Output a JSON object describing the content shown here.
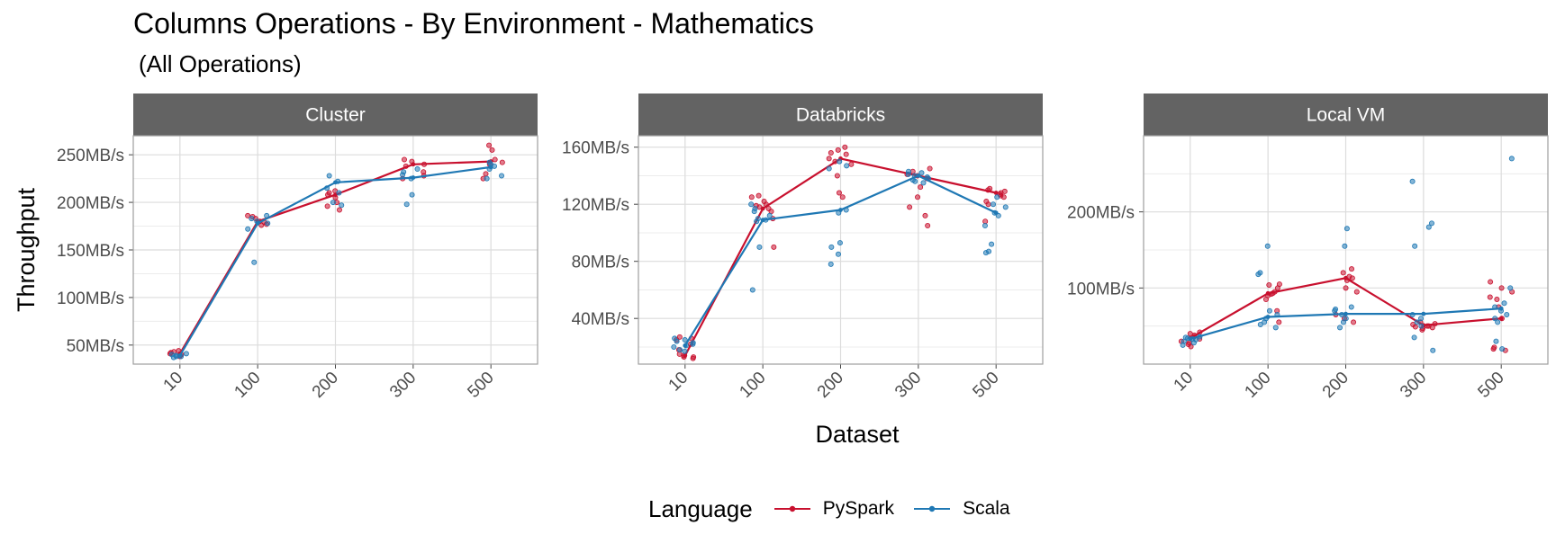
{
  "title": "Columns Operations - By Environment - Mathematics",
  "subtitle": "(All Operations)",
  "legend": {
    "title": "Language",
    "items": [
      {
        "label": "PySpark",
        "color": "#c8102e"
      },
      {
        "label": "Scala",
        "color": "#1f78b4"
      }
    ]
  },
  "chart_data": {
    "type": "line",
    "xlabel": "Dataset",
    "ylabel": "Throughput",
    "categories": [
      "10",
      "100",
      "200",
      "300",
      "500"
    ],
    "grid": true,
    "legend_position": "bottom",
    "panels": [
      {
        "name": "Cluster",
        "ylim": [
          30,
          270
        ],
        "y_ticks": [
          50,
          100,
          150,
          200,
          250
        ],
        "y_tick_labels": [
          "50MB/s",
          "100MB/s",
          "150MB/s",
          "200MB/s",
          "250MB/s"
        ],
        "series": [
          {
            "name": "PySpark",
            "values": [
              41,
              180,
              208,
              240,
              243
            ],
            "points": [
              [
                38,
                40,
                42,
                43,
                44,
                39,
                41
              ],
              [
                177,
                180,
                183,
                185,
                179,
                176,
                186
              ],
              [
                205,
                210,
                192,
                196,
                200,
                212,
                208
              ],
              [
                225,
                232,
                240,
                245,
                243,
                228,
                238
              ],
              [
                260,
                255,
                245,
                230,
                225,
                242,
                240
              ]
            ]
          },
          {
            "name": "Scala",
            "values": [
              39,
              178,
              221,
              226,
              237
            ],
            "points": [
              [
                37,
                38,
                39,
                40,
                41,
                38
              ],
              [
                137,
                172,
                178,
                183,
                186,
                180
              ],
              [
                228,
                222,
                200,
                197,
                210,
                215
              ],
              [
                198,
                208,
                232,
                229,
                225,
                235
              ],
              [
                238,
                228,
                225,
                242,
                240,
                235
              ]
            ]
          }
        ]
      },
      {
        "name": "Databricks",
        "ylim": [
          8,
          168
        ],
        "y_ticks": [
          40,
          80,
          120,
          160
        ],
        "y_tick_labels": [
          "40MB/s",
          "80MB/s",
          "120MB/s",
          "160MB/s"
        ],
        "series": [
          {
            "name": "PySpark",
            "values": [
              14,
              117,
              152,
              140,
              128
            ],
            "points": [
              [
                12,
                13,
                14,
                15,
                18,
                22,
                25,
                27,
                26,
                13
              ],
              [
                90,
                110,
                115,
                117,
                120,
                122,
                125,
                126,
                118,
                119
              ],
              [
                158,
                160,
                155,
                150,
                148,
                152,
                140,
                125,
                128,
                156
              ],
              [
                145,
                140,
                138,
                132,
                125,
                118,
                112,
                105,
                143,
                141
              ],
              [
                130,
                128,
                126,
                127,
                129,
                131,
                125,
                120,
                108,
                122
              ]
            ]
          },
          {
            "name": "Scala",
            "values": [
              21,
              109,
              116,
              140,
              114
            ],
            "points": [
              [
                20,
                21,
                22,
                23,
                24,
                25,
                26,
                18,
                17
              ],
              [
                60,
                90,
                108,
                110,
                112,
                115,
                117,
                120,
                109
              ],
              [
                78,
                85,
                90,
                93,
                114,
                145,
                147,
                150,
                116
              ],
              [
                140,
                138,
                135,
                142,
                137,
                136,
                141,
                139,
                143
              ],
              [
                86,
                87,
                92,
                105,
                112,
                114,
                120,
                125,
                118
              ]
            ]
          }
        ]
      },
      {
        "name": "Local VM",
        "ylim": [
          0,
          300
        ],
        "y_ticks": [
          100,
          200
        ],
        "y_tick_labels": [
          "100MB/s",
          "200MB/s"
        ],
        "series": [
          {
            "name": "PySpark",
            "values": [
              34,
              93,
              113,
              51,
              60
            ],
            "points": [
              [
                23,
                26,
                30,
                33,
                36,
                40,
                42,
                38,
                28
              ],
              [
                55,
                70,
                85,
                90,
                93,
                95,
                100,
                104,
                105,
                92
              ],
              [
                55,
                60,
                65,
                95,
                110,
                115,
                120,
                125,
                113,
                100
              ],
              [
                45,
                48,
                50,
                52,
                55,
                47,
                53,
                50,
                49
              ],
              [
                18,
                20,
                22,
                60,
                85,
                88,
                95,
                100,
                108,
                75
              ]
            ]
          },
          {
            "name": "Scala",
            "values": [
              33,
              62,
              66,
              66,
              73
            ],
            "points": [
              [
                25,
                28,
                30,
                32,
                35,
                36,
                33,
                34
              ],
              [
                48,
                52,
                55,
                60,
                65,
                70,
                118,
                120,
                155
              ],
              [
                48,
                55,
                60,
                65,
                70,
                72,
                75,
                155,
                178
              ],
              [
                18,
                35,
                50,
                55,
                60,
                65,
                155,
                180,
                185,
                240
              ],
              [
                20,
                30,
                55,
                60,
                65,
                70,
                75,
                80,
                100,
                270
              ]
            ]
          }
        ]
      }
    ]
  }
}
